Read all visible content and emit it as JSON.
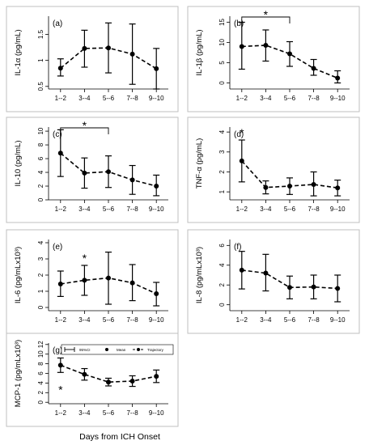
{
  "figure": {
    "xlabel": "Days from ICH Onset",
    "categories": [
      "1--2",
      "3--4",
      "5--6",
      "7--8",
      "9--10"
    ]
  },
  "legend": {
    "items": [
      {
        "label": "95%CI",
        "glyph": "errorbar"
      },
      {
        "label": "Mean",
        "glyph": "dot"
      },
      {
        "label": "Trajectory",
        "glyph": "dashed-line-with-dot"
      }
    ]
  },
  "chart_data": [
    {
      "panel": "(a)",
      "type": "line",
      "ylabel": "IL-1α (pg/mL)",
      "categories": [
        "1--2",
        "3--4",
        "5--6",
        "7--8",
        "9--10"
      ],
      "ylim": [
        0.45,
        1.85
      ],
      "yticks": [
        0.5,
        1,
        1.5
      ],
      "yticklabels": [
        "0.5",
        "1",
        "1.5"
      ],
      "mean": [
        0.85,
        1.23,
        1.24,
        1.12,
        0.84
      ],
      "ci_low": [
        0.7,
        0.87,
        0.76,
        0.54,
        0.45
      ],
      "ci_high": [
        1.03,
        1.58,
        1.72,
        1.7,
        1.23
      ],
      "annotations": []
    },
    {
      "panel": "(b)",
      "type": "line",
      "ylabel": "IL-1β (pg/mL)",
      "categories": [
        "1--2",
        "3--4",
        "5--6",
        "7--8",
        "9--10"
      ],
      "ylim": [
        -1.5,
        16.5
      ],
      "yticks": [
        0,
        5,
        10,
        15
      ],
      "yticklabels": [
        "0",
        "5",
        "10",
        "15"
      ],
      "mean": [
        9.0,
        9.3,
        7.2,
        3.6,
        1.2
      ],
      "ci_low": [
        3.4,
        5.4,
        4.1,
        1.9,
        0.0
      ],
      "ci_high": [
        15.0,
        13.1,
        10.2,
        5.8,
        3.0
      ],
      "annotations": [
        {
          "text": "*",
          "bracket": [
            "1--2",
            "5--6"
          ]
        }
      ]
    },
    {
      "panel": "(c)",
      "type": "line",
      "ylabel": "IL-10 (pg/mL)",
      "categories": [
        "1--2",
        "3--4",
        "5--6",
        "7--8",
        "9--10"
      ],
      "ylim": [
        0,
        10.6
      ],
      "yticks": [
        0,
        2,
        4,
        6,
        8,
        10
      ],
      "yticklabels": [
        "0",
        "2",
        "4",
        "6",
        "8",
        "10"
      ],
      "mean": [
        6.8,
        3.9,
        4.1,
        2.9,
        2.0
      ],
      "ci_low": [
        3.4,
        1.7,
        1.8,
        0.8,
        0.6
      ],
      "ci_high": [
        10.2,
        6.1,
        6.4,
        5.0,
        3.6
      ],
      "annotations": [
        {
          "text": "*",
          "bracket": [
            "1--2",
            "5--6"
          ]
        }
      ]
    },
    {
      "panel": "(d)",
      "type": "line",
      "ylabel": "TNF-α (pg/mL)",
      "categories": [
        "1--2",
        "3--4",
        "5--6",
        "7--8",
        "9--10"
      ],
      "ylim": [
        0.6,
        4.25
      ],
      "yticks": [
        1,
        2,
        3,
        4
      ],
      "yticklabels": [
        "1",
        "2",
        "3",
        "4"
      ],
      "mean": [
        2.55,
        1.22,
        1.29,
        1.37,
        1.2
      ],
      "ci_low": [
        1.5,
        0.9,
        0.87,
        0.8,
        0.8
      ],
      "ci_high": [
        3.6,
        1.55,
        1.7,
        2.0,
        1.59
      ],
      "annotations": [
        {
          "text": "*",
          "at": "1--2"
        }
      ]
    },
    {
      "panel": "(e)",
      "type": "line",
      "ylabel": "IL-6 (pg/mLx10³)",
      "categories": [
        "1--2",
        "3--4",
        "5--6",
        "7--8",
        "9--10"
      ],
      "ylim": [
        -0.2,
        4.2
      ],
      "yticks": [
        0,
        1,
        2,
        3,
        4
      ],
      "yticklabels": [
        "0",
        "1",
        "2",
        "3",
        "4"
      ],
      "mean": [
        1.45,
        1.68,
        1.82,
        1.52,
        0.85
      ],
      "ci_low": [
        0.68,
        0.75,
        0.2,
        0.42,
        0.1
      ],
      "ci_high": [
        2.25,
        2.6,
        3.42,
        2.65,
        1.55
      ],
      "annotations": [
        {
          "text": "*",
          "at": "3--4"
        }
      ]
    },
    {
      "panel": "(f)",
      "type": "line",
      "ylabel": "IL-8 (pg/mLx10³)",
      "categories": [
        "1--2",
        "3--4",
        "5--6",
        "7--8",
        "9--10"
      ],
      "ylim": [
        -0.6,
        6.6
      ],
      "yticks": [
        0,
        2,
        4,
        6
      ],
      "yticklabels": [
        "0",
        "2",
        "4",
        "6"
      ],
      "mean": [
        3.5,
        3.2,
        1.75,
        1.8,
        1.65
      ],
      "ci_low": [
        1.6,
        1.4,
        0.6,
        0.6,
        0.3
      ],
      "ci_high": [
        5.4,
        5.1,
        2.9,
        3.0,
        3.0
      ],
      "annotations": []
    },
    {
      "panel": "(g)",
      "type": "line",
      "ylabel": "MCP-1 (pg/mLx10³)",
      "categories": [
        "1--2",
        "3--4",
        "5--6",
        "7--8",
        "9--10"
      ],
      "ylim": [
        -0.3,
        12.3
      ],
      "yticks": [
        0,
        2,
        4,
        6,
        8,
        10,
        12
      ],
      "yticklabels": [
        "0",
        "2",
        "4",
        "6",
        "8",
        "10",
        "12"
      ],
      "mean": [
        7.7,
        5.8,
        4.2,
        4.4,
        5.4
      ],
      "ci_low": [
        6.2,
        4.6,
        3.4,
        3.3,
        4.1
      ],
      "ci_high": [
        9.2,
        7.0,
        5.0,
        5.5,
        6.7
      ],
      "annotations": [
        {
          "text": "*",
          "at": "1--2",
          "position": "below"
        }
      ]
    }
  ]
}
